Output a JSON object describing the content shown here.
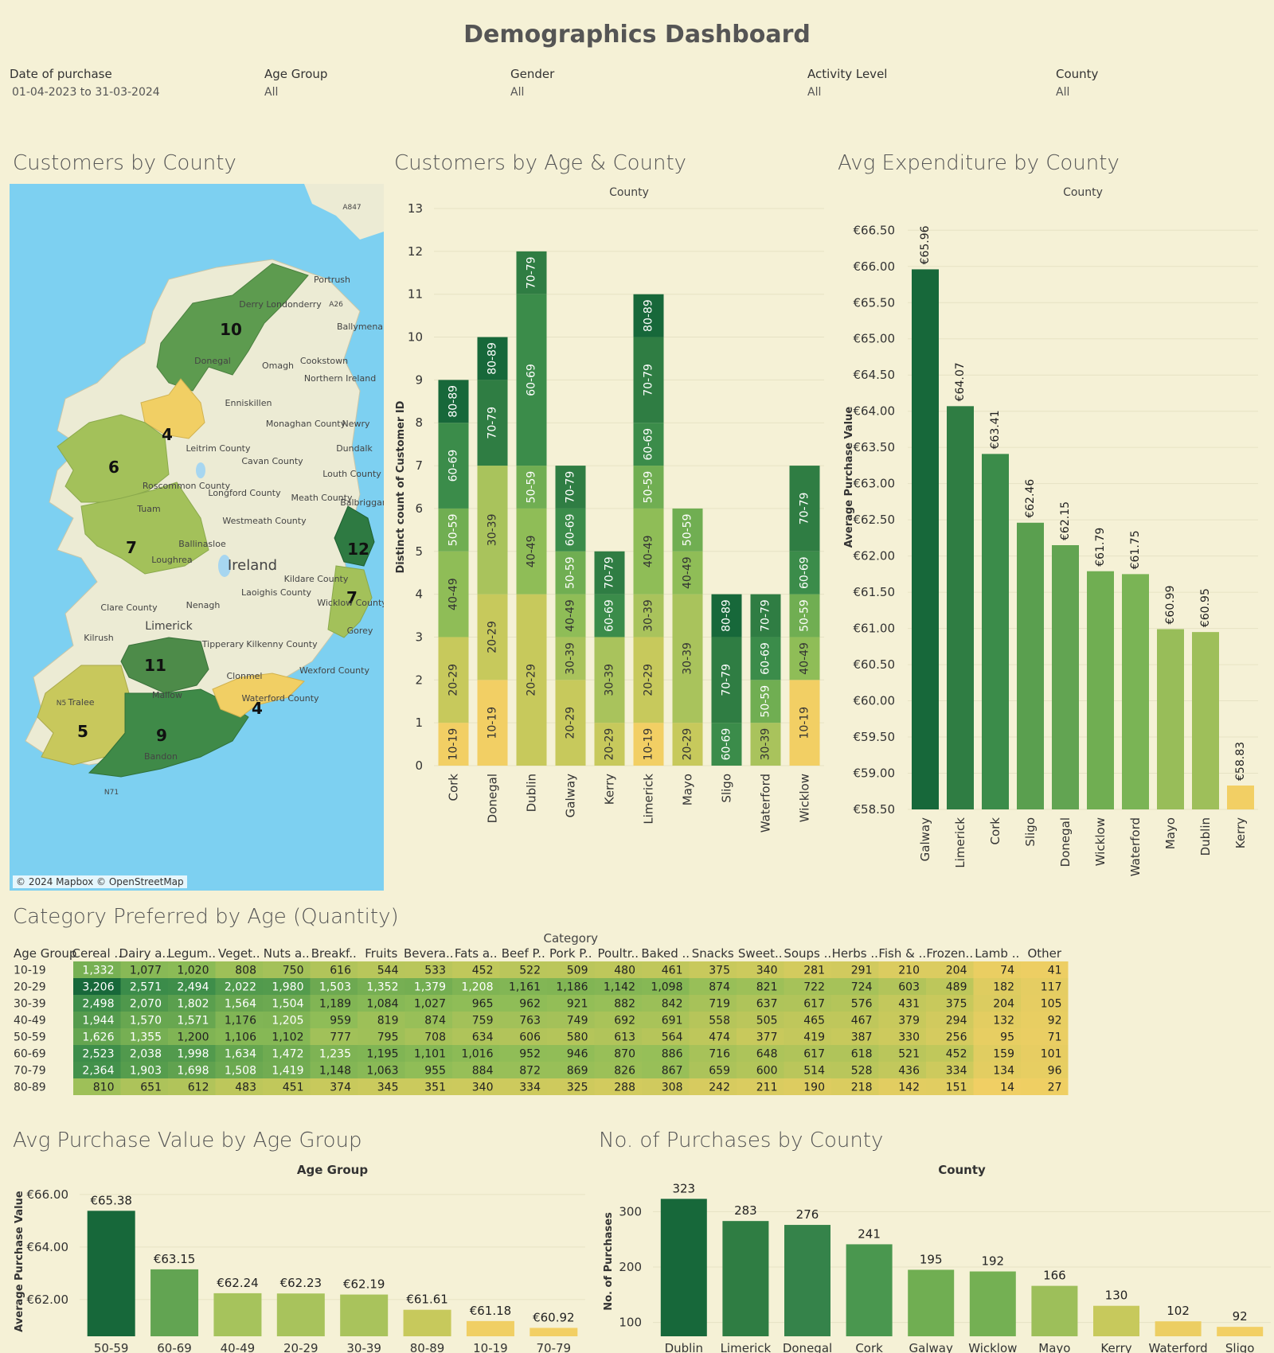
{
  "title": "Demographics Dashboard",
  "filters": [
    {
      "label": "Date of purchase",
      "value": "01-04-2023 to 31-03-2024"
    },
    {
      "label": "Age Group",
      "value": "All"
    },
    {
      "label": "Gender",
      "value": "All"
    },
    {
      "label": "Activity Level",
      "value": "All"
    },
    {
      "label": "County",
      "value": "All"
    }
  ],
  "map": {
    "title": "Customers by County",
    "credit": "© 2024 Mapbox © OpenStreetMap",
    "labels": [
      "Ireland",
      "Northern Ireland",
      "Derry Londonderry",
      "Portrush",
      "Ballymena",
      "Cookstown",
      "Omagh",
      "Enniskillen",
      "Monaghan County",
      "Newry",
      "Cavan County",
      "Dundalk",
      "Louth County",
      "Leitrim County",
      "Roscommon County",
      "Longford County",
      "Meath County",
      "Westmeath County",
      "Balbriggan",
      "Kildare County",
      "Laoighis County",
      "Clare County",
      "Limerick",
      "Tipperary",
      "Kilkenny County",
      "Clonmel",
      "Wexford County",
      "Gorey",
      "Nenagh",
      "Kilrush",
      "Mallow",
      "Bandon",
      "Ballinasloe",
      "Loughrea",
      "Tuam",
      "Donegal",
      "Waterford County",
      "Tralee",
      "Wicklow County",
      "A847",
      "A26",
      "N5",
      "N71"
    ],
    "counts": {
      "Donegal": 10,
      "Sligo": 4,
      "Mayo": 6,
      "Galway": 7,
      "Dublin": 12,
      "Wicklow": 7,
      "Limerick": 11,
      "Waterford": 4,
      "Kerry": 5,
      "Cork": 9
    }
  },
  "chart_data": [
    {
      "type": "bar",
      "stacked": true,
      "title": "Customers by Age & County",
      "xlabel": "County",
      "ylabel": "Distinct count of Customer ID",
      "ylim": [
        0,
        13
      ],
      "yticks": [
        0,
        1,
        2,
        3,
        4,
        5,
        6,
        7,
        8,
        9,
        10,
        11,
        12,
        13
      ],
      "categories": [
        "Cork",
        "Donegal",
        "Dublin",
        "Galway",
        "Kerry",
        "Limerick",
        "Mayo",
        "Sligo",
        "Waterford",
        "Wicklow"
      ],
      "stacks": [
        [
          [
            "10-19",
            1
          ],
          [
            "20-29",
            2
          ],
          [
            "40-49",
            2
          ],
          [
            "50-59",
            1
          ],
          [
            "60-69",
            2
          ],
          [
            "80-89",
            1
          ]
        ],
        [
          [
            "10-19",
            2
          ],
          [
            "20-29",
            2
          ],
          [
            "30-39",
            3
          ],
          [
            "70-79",
            2
          ],
          [
            "80-89",
            1
          ]
        ],
        [
          [
            "20-29",
            4
          ],
          [
            "40-49",
            2
          ],
          [
            "50-59",
            1
          ],
          [
            "60-69",
            4
          ],
          [
            "70-79",
            1
          ]
        ],
        [
          [
            "20-29",
            2
          ],
          [
            "30-39",
            1
          ],
          [
            "40-49",
            1
          ],
          [
            "50-59",
            1
          ],
          [
            "60-69",
            1
          ],
          [
            "70-79",
            1
          ]
        ],
        [
          [
            "20-29",
            1
          ],
          [
            "30-39",
            2
          ],
          [
            "60-69",
            1
          ],
          [
            "70-79",
            1
          ]
        ],
        [
          [
            "10-19",
            1
          ],
          [
            "20-29",
            2
          ],
          [
            "30-39",
            1
          ],
          [
            "40-49",
            2
          ],
          [
            "50-59",
            1
          ],
          [
            "60-69",
            1
          ],
          [
            "70-79",
            2
          ],
          [
            "80-89",
            1
          ]
        ],
        [
          [
            "20-29",
            1
          ],
          [
            "30-39",
            3
          ],
          [
            "40-49",
            1
          ],
          [
            "50-59",
            1
          ]
        ],
        [
          [
            "60-69",
            1
          ],
          [
            "70-79",
            2
          ],
          [
            "80-89",
            1
          ]
        ],
        [
          [
            "30-39",
            1
          ],
          [
            "50-59",
            1
          ],
          [
            "60-69",
            1
          ],
          [
            "70-79",
            1
          ]
        ],
        [
          [
            "10-19",
            2
          ],
          [
            "40-49",
            1
          ],
          [
            "50-59",
            1
          ],
          [
            "60-69",
            1
          ],
          [
            "70-79",
            2
          ]
        ]
      ],
      "age_colors": {
        "10-19": "#f2cf64",
        "20-29": "#c7c95c",
        "30-39": "#a9c35c",
        "40-49": "#8fbd57",
        "50-59": "#70ae52",
        "60-69": "#3b8c4a",
        "70-79": "#2f7d43",
        "80-89": "#17683a"
      }
    },
    {
      "type": "bar",
      "title": "Avg Expenditure by County",
      "xlabel": "County",
      "ylabel": "Average Purchase Value",
      "ylim": [
        58.5,
        66.8
      ],
      "yticks": [
        "€58.50",
        "€59.00",
        "€59.50",
        "€60.00",
        "€60.50",
        "€61.00",
        "€61.50",
        "€62.00",
        "€62.50",
        "€63.00",
        "€63.50",
        "€64.00",
        "€64.50",
        "€65.00",
        "€65.50",
        "€66.00",
        "€66.50"
      ],
      "categories": [
        "Galway",
        "Limerick",
        "Cork",
        "Sligo",
        "Donegal",
        "Wicklow",
        "Waterford",
        "Mayo",
        "Dublin",
        "Kerry"
      ],
      "values": [
        65.96,
        64.07,
        63.41,
        62.46,
        62.15,
        61.79,
        61.75,
        60.99,
        60.95,
        58.83
      ],
      "labels": [
        "€65.96",
        "€64.07",
        "€63.41",
        "€62.46",
        "€62.15",
        "€61.79",
        "€61.75",
        "€60.99",
        "€60.95",
        "€58.83"
      ],
      "colors": [
        "#17683a",
        "#2f7d43",
        "#3b8c4a",
        "#5a9f4f",
        "#62a452",
        "#70ae52",
        "#7ab455",
        "#98bd59",
        "#9ebf5a",
        "#f2cf64"
      ]
    },
    {
      "type": "heatmap",
      "title": "Category Preferred by Age (Quantity)",
      "xlabel": "Category",
      "row_header": "Age Group",
      "columns": [
        "Cereal ..",
        "Dairy a..",
        "Legum..",
        "Veget..",
        "Nuts a..",
        "Breakf..",
        "Fruits",
        "Bevera..",
        "Fats a..",
        "Beef P..",
        "Pork P..",
        "Poultr..",
        "Baked ..",
        "Snacks",
        "Sweet..",
        "Soups ..",
        "Herbs ..",
        "Fish & ..",
        "Frozen..",
        "Lamb ..",
        "Other"
      ],
      "rows": [
        {
          "age": "10-19",
          "values": [
            "1,332",
            "1,077",
            "1,020",
            "808",
            "750",
            "616",
            "544",
            "533",
            "452",
            "522",
            "509",
            "480",
            "461",
            "375",
            "340",
            "281",
            "291",
            "210",
            "204",
            "74",
            "41"
          ]
        },
        {
          "age": "20-29",
          "values": [
            "3,206",
            "2,571",
            "2,494",
            "2,022",
            "1,980",
            "1,503",
            "1,352",
            "1,379",
            "1,208",
            "1,161",
            "1,186",
            "1,142",
            "1,098",
            "874",
            "821",
            "722",
            "724",
            "603",
            "489",
            "182",
            "117"
          ]
        },
        {
          "age": "30-39",
          "values": [
            "2,498",
            "2,070",
            "1,802",
            "1,564",
            "1,504",
            "1,189",
            "1,084",
            "1,027",
            "965",
            "962",
            "921",
            "882",
            "842",
            "719",
            "637",
            "617",
            "576",
            "431",
            "375",
            "204",
            "105"
          ]
        },
        {
          "age": "40-49",
          "values": [
            "1,944",
            "1,570",
            "1,571",
            "1,176",
            "1,205",
            "959",
            "819",
            "874",
            "759",
            "763",
            "749",
            "692",
            "691",
            "558",
            "505",
            "465",
            "467",
            "379",
            "294",
            "132",
            "92"
          ]
        },
        {
          "age": "50-59",
          "values": [
            "1,626",
            "1,355",
            "1,200",
            "1,106",
            "1,102",
            "777",
            "795",
            "708",
            "634",
            "606",
            "580",
            "613",
            "564",
            "474",
            "377",
            "419",
            "387",
            "330",
            "256",
            "95",
            "71"
          ]
        },
        {
          "age": "60-69",
          "values": [
            "2,523",
            "2,038",
            "1,998",
            "1,634",
            "1,472",
            "1,235",
            "1,195",
            "1,101",
            "1,016",
            "952",
            "946",
            "870",
            "886",
            "716",
            "648",
            "617",
            "618",
            "521",
            "452",
            "159",
            "101"
          ]
        },
        {
          "age": "70-79",
          "values": [
            "2,364",
            "1,903",
            "1,698",
            "1,508",
            "1,419",
            "1,148",
            "1,063",
            "955",
            "884",
            "872",
            "869",
            "826",
            "867",
            "659",
            "600",
            "514",
            "528",
            "436",
            "334",
            "134",
            "96"
          ]
        },
        {
          "age": "80-89",
          "values": [
            "810",
            "651",
            "612",
            "483",
            "451",
            "374",
            "345",
            "351",
            "340",
            "334",
            "325",
            "288",
            "308",
            "242",
            "211",
            "190",
            "218",
            "142",
            "151",
            "14",
            "27"
          ]
        }
      ]
    },
    {
      "type": "bar",
      "title": "Avg Purchase Value by Age Group",
      "xlabel": "Age Group",
      "ylabel": "Average Purchase Value",
      "ylim": [
        60.6,
        66.3
      ],
      "yticks": [
        "€62.00",
        "€64.00",
        "€66.00"
      ],
      "categories": [
        "50-59",
        "60-69",
        "40-49",
        "20-29",
        "30-39",
        "80-89",
        "10-19",
        "70-79"
      ],
      "values": [
        65.38,
        63.15,
        62.24,
        62.23,
        62.19,
        61.61,
        61.18,
        60.92
      ],
      "labels": [
        "€65.38",
        "€63.15",
        "€62.24",
        "€62.23",
        "€62.19",
        "€61.61",
        "€61.18",
        "€60.92"
      ],
      "colors": [
        "#17683a",
        "#62a452",
        "#a6c35c",
        "#a8c35c",
        "#a9c35c",
        "#c7c95c",
        "#f0cf64",
        "#f2cf64"
      ]
    },
    {
      "type": "bar",
      "title": "No. of Purchases by County",
      "xlabel": "County",
      "ylabel": "No. of Purchases",
      "ylim": [
        75,
        345
      ],
      "yticks": [
        "100",
        "200",
        "300"
      ],
      "categories": [
        "Dublin",
        "Limerick",
        "Donegal",
        "Cork",
        "Galway",
        "Wicklow",
        "Mayo",
        "Kerry",
        "Waterford",
        "Sligo"
      ],
      "values": [
        323,
        283,
        276,
        241,
        195,
        192,
        166,
        130,
        102,
        92
      ],
      "colors": [
        "#17683a",
        "#2f7d43",
        "#35834a",
        "#4a974f",
        "#70ae52",
        "#74b053",
        "#9dbf5a",
        "#c7c95c",
        "#ecce63",
        "#f2cf64"
      ]
    }
  ]
}
